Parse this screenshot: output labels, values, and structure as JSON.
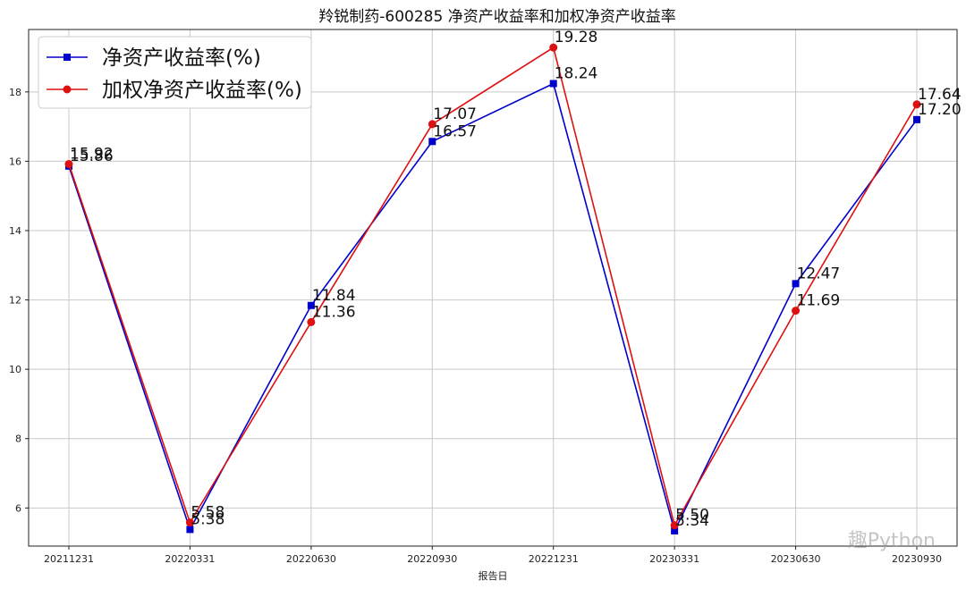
{
  "chart_data": {
    "type": "line",
    "title": "羚锐制药-600285 净资产收益率和加权净资产收益率",
    "xlabel": "报告日",
    "ylabel": "",
    "categories": [
      "20211231",
      "20220331",
      "20220630",
      "20220930",
      "20221231",
      "20230331",
      "20230630",
      "20230930"
    ],
    "ylim": [
      4.9,
      19.8
    ],
    "yticks": [
      6,
      8,
      10,
      12,
      14,
      16,
      18
    ],
    "grid": true,
    "legend_position": "top-left",
    "series": [
      {
        "name": "净资产收益率(%)",
        "color": "#0000cc",
        "marker": "square",
        "values": [
          15.86,
          5.38,
          11.84,
          16.57,
          18.24,
          5.34,
          12.47,
          17.2
        ],
        "labels": [
          "15.86",
          "5.38",
          "11.84",
          "16.57",
          "18.24",
          "5.34",
          "12.47",
          "17.20"
        ]
      },
      {
        "name": "加权净资产收益率(%)",
        "color": "#dd1111",
        "marker": "circle",
        "values": [
          15.92,
          5.58,
          11.36,
          17.07,
          19.28,
          5.5,
          11.69,
          17.64
        ],
        "labels": [
          "15.92",
          "5.58",
          "11.36",
          "17.07",
          "19.28",
          "5.50",
          "11.69",
          "17.64"
        ]
      }
    ]
  },
  "watermark": "趣Python"
}
